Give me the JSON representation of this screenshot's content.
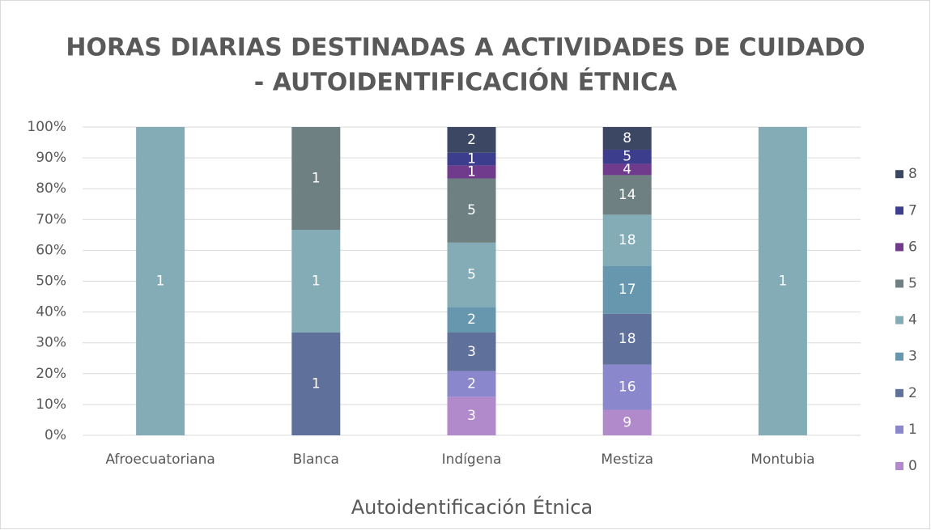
{
  "chart_data": {
    "type": "bar",
    "stacked": "percent",
    "title": [
      "HORAS DIARIAS DESTINADAS A ACTIVIDADES DE CUIDADO",
      "- AUTOIDENTIFICACIÓN ÉTNICA"
    ],
    "x_label": "Autoidentificación Étnica",
    "categories": [
      "Afroecuatoriana",
      "Blanca",
      "Indígena",
      "Mestiza",
      "Montubia"
    ],
    "series": [
      {
        "name": "0",
        "color": "#b08acb",
        "values": [
          null,
          null,
          3,
          9,
          null
        ]
      },
      {
        "name": "1",
        "color": "#8a87cc",
        "values": [
          null,
          null,
          2,
          16,
          null
        ]
      },
      {
        "name": "2",
        "color": "#5f719b",
        "values": [
          null,
          1,
          3,
          18,
          null
        ]
      },
      {
        "name": "3",
        "color": "#6697ae",
        "values": [
          null,
          null,
          2,
          17,
          null
        ]
      },
      {
        "name": "4",
        "color": "#84acb6",
        "values": [
          1,
          1,
          5,
          18,
          1
        ]
      },
      {
        "name": "5",
        "color": "#6e8081",
        "values": [
          null,
          1,
          5,
          14,
          null
        ]
      },
      {
        "name": "6",
        "color": "#703b8c",
        "values": [
          null,
          null,
          1,
          4,
          null
        ]
      },
      {
        "name": "7",
        "color": "#3d3d8e",
        "values": [
          null,
          null,
          1,
          5,
          null
        ]
      },
      {
        "name": "8",
        "color": "#3b4763",
        "values": [
          null,
          null,
          2,
          8,
          null
        ]
      }
    ],
    "ylim": [
      0,
      100
    ],
    "yticks": [
      {
        "value": 0,
        "label": "0%"
      },
      {
        "value": 10,
        "label": "10%"
      },
      {
        "value": 20,
        "label": "20%"
      },
      {
        "value": 30,
        "label": "30%"
      },
      {
        "value": 40,
        "label": "40%"
      },
      {
        "value": 50,
        "label": "50%"
      },
      {
        "value": 60,
        "label": "60%"
      },
      {
        "value": 70,
        "label": "70%"
      },
      {
        "value": 80,
        "label": "80%"
      },
      {
        "value": 90,
        "label": "90%"
      },
      {
        "value": 100,
        "label": "100%"
      }
    ],
    "grid": true,
    "legend": "right"
  }
}
